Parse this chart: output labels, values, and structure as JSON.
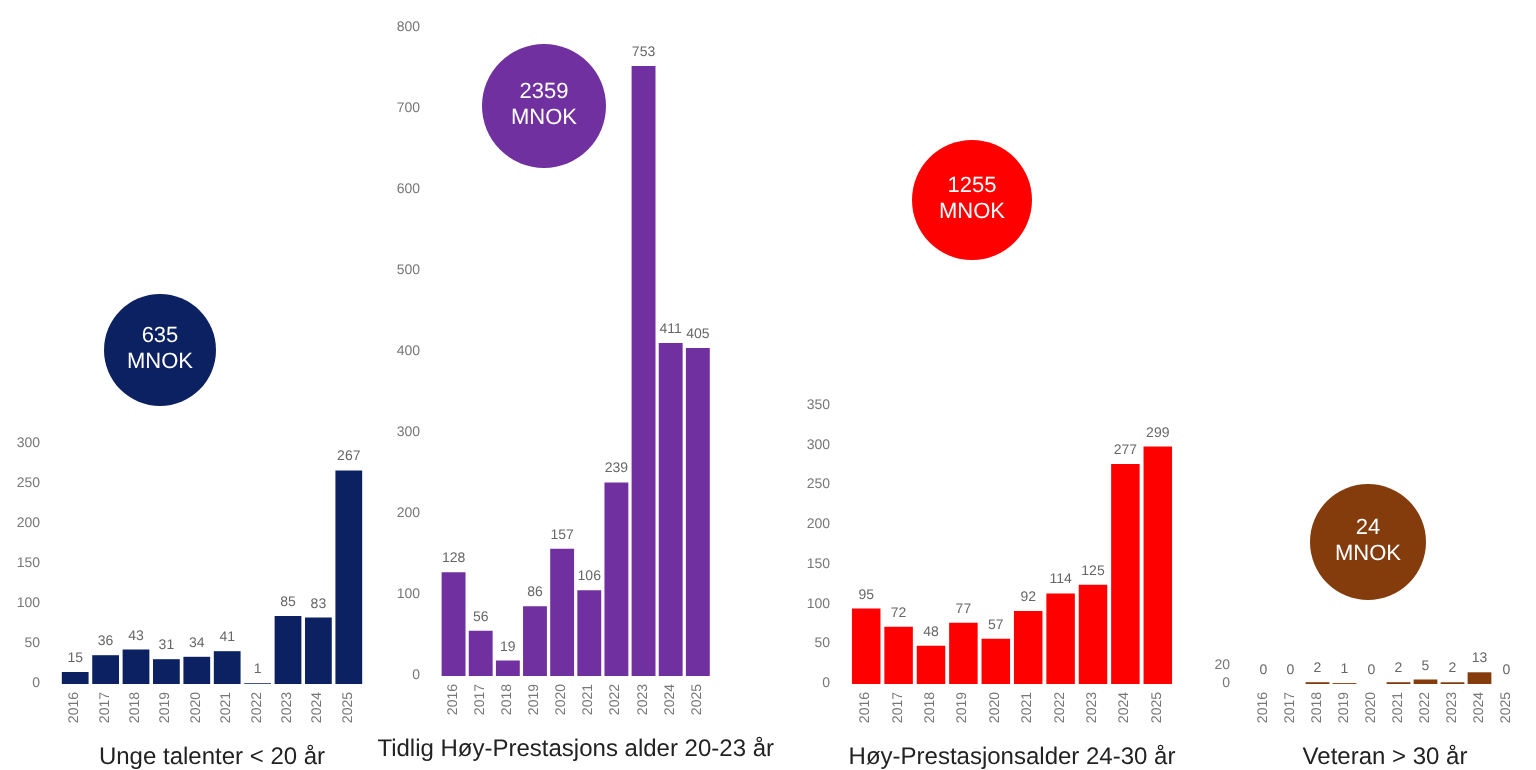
{
  "chart_data": [
    {
      "type": "bar",
      "xlabel": "Unge talenter < 20 år",
      "categories": [
        "2016",
        "2017",
        "2018",
        "2019",
        "2020",
        "2021",
        "2022",
        "2023",
        "2024",
        "2025"
      ],
      "values": [
        15,
        36,
        43,
        31,
        34,
        41,
        1,
        85,
        83,
        267
      ],
      "color": "#0b2161",
      "ylim": [
        0,
        300
      ],
      "yticks": [
        0,
        50,
        100,
        150,
        200,
        250,
        300
      ],
      "data_labels": true,
      "grid": false,
      "annotations": [
        "635 MNOK"
      ]
    },
    {
      "type": "bar",
      "xlabel": "Tidlig Høy-Prestasjons alder 20-23 år",
      "categories": [
        "2016",
        "2017",
        "2018",
        "2019",
        "2020",
        "2021",
        "2022",
        "2023",
        "2024",
        "2025"
      ],
      "values": [
        128,
        56,
        19,
        86,
        157,
        106,
        239,
        753,
        411,
        405
      ],
      "color": "#7030a0",
      "ylim": [
        0,
        800
      ],
      "yticks": [
        0,
        100,
        200,
        300,
        400,
        500,
        600,
        700,
        800
      ],
      "data_labels": true,
      "grid": false,
      "annotations": [
        "2359 MNOK"
      ]
    },
    {
      "type": "bar",
      "xlabel": "Høy-Prestasjonsalder 24-30 år",
      "categories": [
        "2016",
        "2017",
        "2018",
        "2019",
        "2020",
        "2021",
        "2022",
        "2023",
        "2024",
        "2025"
      ],
      "values": [
        95,
        72,
        48,
        77,
        57,
        92,
        114,
        125,
        277,
        299
      ],
      "color": "#ff0000",
      "ylim": [
        0,
        350
      ],
      "yticks": [
        0,
        50,
        100,
        150,
        200,
        250,
        300,
        350
      ],
      "data_labels": true,
      "grid": false,
      "annotations": [
        "1255 MNOK"
      ]
    },
    {
      "type": "bar",
      "xlabel": "Veteran > 30 år",
      "categories": [
        "2016",
        "2017",
        "2018",
        "2019",
        "2020",
        "2021",
        "2022",
        "2023",
        "2024",
        "2025"
      ],
      "values": [
        0,
        0,
        2,
        1,
        0,
        2,
        5,
        2,
        13,
        0
      ],
      "color": "#843c0c",
      "ylim": [
        0,
        20
      ],
      "yticks": [
        0,
        20
      ],
      "data_labels": true,
      "grid": false,
      "annotations": [
        "24 MNOK"
      ]
    }
  ]
}
